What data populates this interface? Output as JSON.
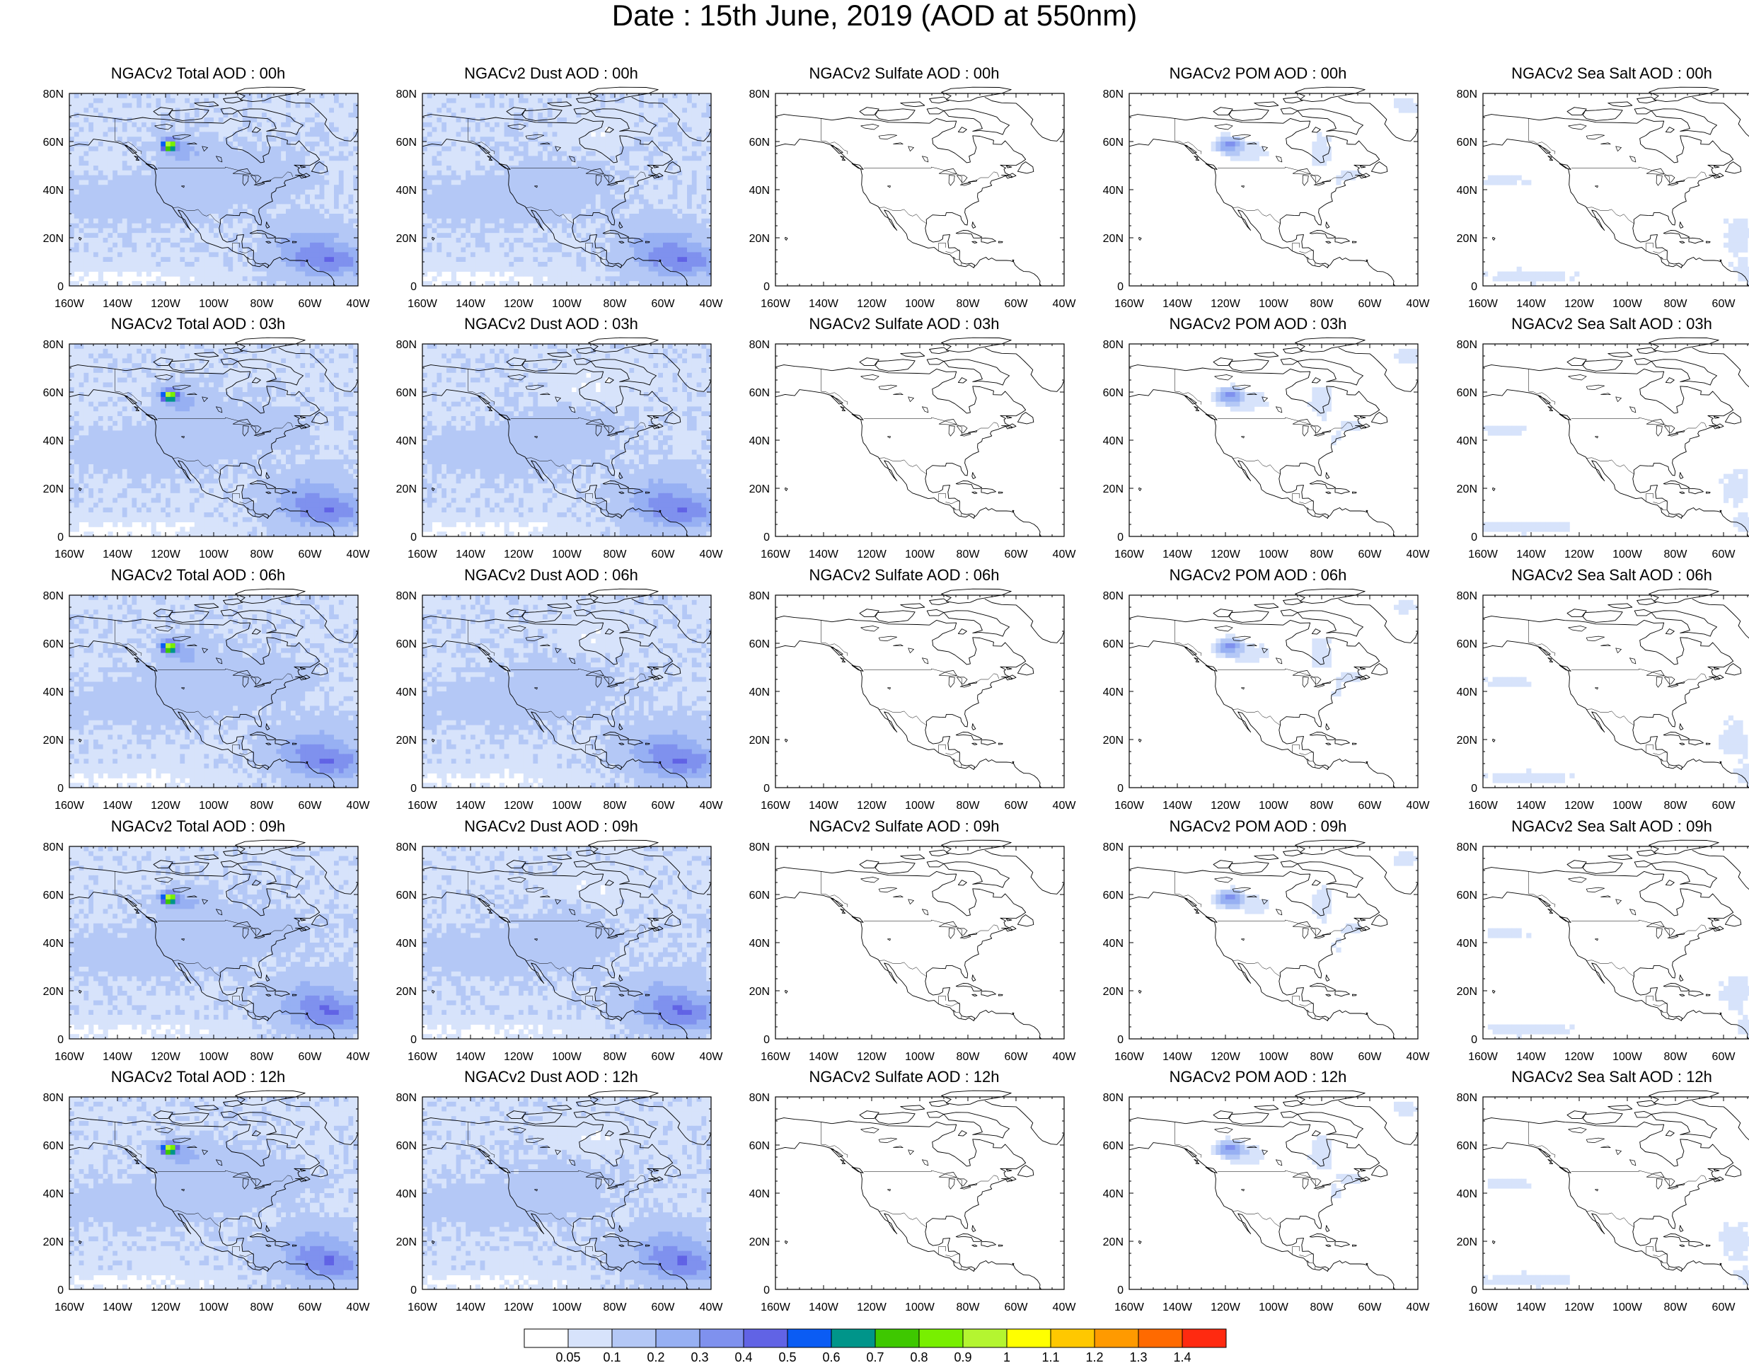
{
  "title": "Date : 15th June, 2019 (AOD at 550nm)",
  "axes": {
    "x_ticks": [
      "160W",
      "140W",
      "120W",
      "100W",
      "80W",
      "60W",
      "40W"
    ],
    "y_ticks": [
      "80N",
      "60N",
      "40N",
      "20N",
      "0"
    ]
  },
  "map_extent": {
    "lon": [
      -160,
      -40
    ],
    "lat": [
      0,
      80
    ]
  },
  "colors": {
    "land_line": "#000000",
    "background": "#ffffff"
  },
  "panels": [
    {
      "title": "NGACv2 Total AOD : 00h",
      "species": "total",
      "hour": "00h"
    },
    {
      "title": "NGACv2 Dust AOD : 00h",
      "species": "dust",
      "hour": "00h"
    },
    {
      "title": "NGACv2 Sulfate AOD : 00h",
      "species": "sulfate",
      "hour": "00h"
    },
    {
      "title": "NGACv2 POM AOD : 00h",
      "species": "pom",
      "hour": "00h"
    },
    {
      "title": "NGACv2 Sea Salt AOD : 00h",
      "species": "seasalt",
      "hour": "00h"
    },
    {
      "title": "NGACv2 Total AOD : 03h",
      "species": "total",
      "hour": "03h"
    },
    {
      "title": "NGACv2 Dust AOD : 03h",
      "species": "dust",
      "hour": "03h"
    },
    {
      "title": "NGACv2 Sulfate AOD : 03h",
      "species": "sulfate",
      "hour": "03h"
    },
    {
      "title": "NGACv2 POM AOD : 03h",
      "species": "pom",
      "hour": "03h"
    },
    {
      "title": "NGACv2 Sea Salt AOD : 03h",
      "species": "seasalt",
      "hour": "03h"
    },
    {
      "title": "NGACv2 Total AOD : 06h",
      "species": "total",
      "hour": "06h"
    },
    {
      "title": "NGACv2 Dust AOD : 06h",
      "species": "dust",
      "hour": "06h"
    },
    {
      "title": "NGACv2 Sulfate AOD : 06h",
      "species": "sulfate",
      "hour": "06h"
    },
    {
      "title": "NGACv2 POM AOD : 06h",
      "species": "pom",
      "hour": "06h"
    },
    {
      "title": "NGACv2 Sea Salt AOD : 06h",
      "species": "seasalt",
      "hour": "06h"
    },
    {
      "title": "NGACv2 Total AOD : 09h",
      "species": "total",
      "hour": "09h"
    },
    {
      "title": "NGACv2 Dust AOD : 09h",
      "species": "dust",
      "hour": "09h"
    },
    {
      "title": "NGACv2 Sulfate AOD : 09h",
      "species": "sulfate",
      "hour": "09h"
    },
    {
      "title": "NGACv2 POM AOD : 09h",
      "species": "pom",
      "hour": "09h"
    },
    {
      "title": "NGACv2 Sea Salt  AOD : 09h",
      "species": "seasalt",
      "hour": "09h"
    },
    {
      "title": "NGACv2 Total AOD  : 12h",
      "species": "total",
      "hour": "12h"
    },
    {
      "title": "NGACv2 Dust AOD : 12h",
      "species": "dust",
      "hour": "12h"
    },
    {
      "title": "NGACv2 Sulfate AOD : 12h",
      "species": "sulfate",
      "hour": "12h"
    },
    {
      "title": "NGACv2 POM  AOD : 12h",
      "species": "pom",
      "hour": "12h"
    },
    {
      "title": "NGACv2 Sea Salt  AOD : 12h",
      "species": "seasalt",
      "hour": "12h"
    }
  ],
  "colorbar": {
    "labels": [
      "0.05",
      "0.1",
      "0.2",
      "0.3",
      "0.4",
      "0.5",
      "0.6",
      "0.7",
      "0.8",
      "0.9",
      "1",
      "1.1",
      "1.2",
      "1.3",
      "1.4"
    ],
    "colors": [
      "#ffffff",
      "#d7e3fb",
      "#b4c8f6",
      "#97b0f3",
      "#7f91ee",
      "#6163e5",
      "#0a5cf4",
      "#00958a",
      "#3ec800",
      "#78ef00",
      "#b4f530",
      "#ffff00",
      "#ffc800",
      "#ff9a00",
      "#ff6a00",
      "#ff2a10"
    ]
  }
}
